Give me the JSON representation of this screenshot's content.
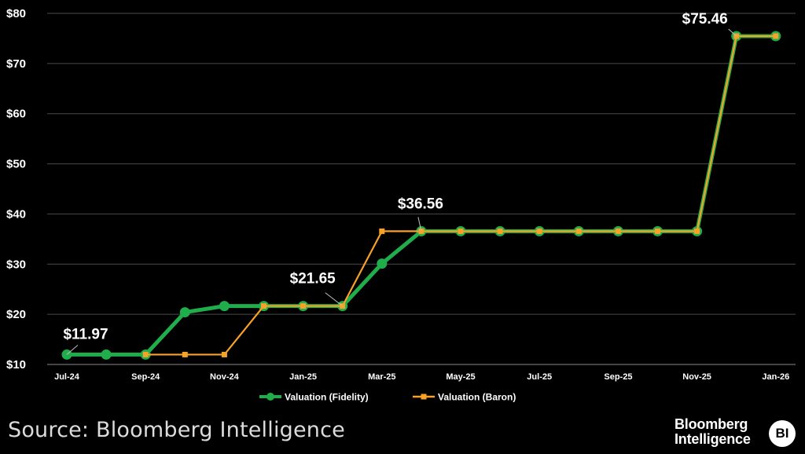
{
  "chart_data": {
    "type": "line",
    "title": "",
    "xlabel": "",
    "ylabel": "",
    "x": [
      "Jul-24",
      "Aug-24",
      "Sep-24",
      "Oct-24",
      "Nov-24",
      "Dec-24",
      "Jan-25",
      "Feb-25",
      "Mar-25",
      "Apr-25",
      "May-25",
      "Jun-25",
      "Jul-25",
      "Aug-25",
      "Sep-25",
      "Oct-25",
      "Nov-25",
      "Dec-25",
      "Jan-26"
    ],
    "x_tick_labels": [
      "Jul-24",
      "Sep-24",
      "Nov-24",
      "Jan-25",
      "Mar-25",
      "May-25",
      "Jul-25",
      "Sep-25",
      "Nov-25",
      "Jan-26"
    ],
    "y_tick_labels": [
      "$10",
      "$20",
      "$30",
      "$40",
      "$50",
      "$60",
      "$70",
      "$80"
    ],
    "ylim": [
      10,
      80
    ],
    "grid": "horizontal",
    "legend_position": "bottom",
    "series": [
      {
        "name": "Valuation (Fidelity)",
        "color": "#1fae4b",
        "marker": "circle",
        "values": [
          11.97,
          11.97,
          11.97,
          20.4,
          21.65,
          21.65,
          21.65,
          21.65,
          30.1,
          36.56,
          36.56,
          36.56,
          36.56,
          36.56,
          36.56,
          36.56,
          36.56,
          75.46,
          75.46
        ]
      },
      {
        "name": "Valuation (Baron)",
        "color": "#f7a128",
        "marker": "square",
        "values": [
          null,
          null,
          11.97,
          11.97,
          11.97,
          21.65,
          21.65,
          21.65,
          36.56,
          36.56,
          36.56,
          36.56,
          36.56,
          36.56,
          36.56,
          36.56,
          36.56,
          75.46,
          75.46
        ]
      }
    ],
    "annotations": [
      {
        "text": "$11.97",
        "x": "Jul-24",
        "y": 11.97
      },
      {
        "text": "$21.65",
        "x": "Feb-25",
        "y": 21.65
      },
      {
        "text": "$36.56",
        "x": "Apr-25",
        "y": 36.56
      },
      {
        "text": "$75.46",
        "x": "Dec-25",
        "y": 75.46
      }
    ]
  },
  "footer": {
    "source": "Source: Bloomberg Intelligence",
    "brand_line1": "Bloomberg",
    "brand_line2": "Intelligence",
    "brand_badge": "BI"
  }
}
